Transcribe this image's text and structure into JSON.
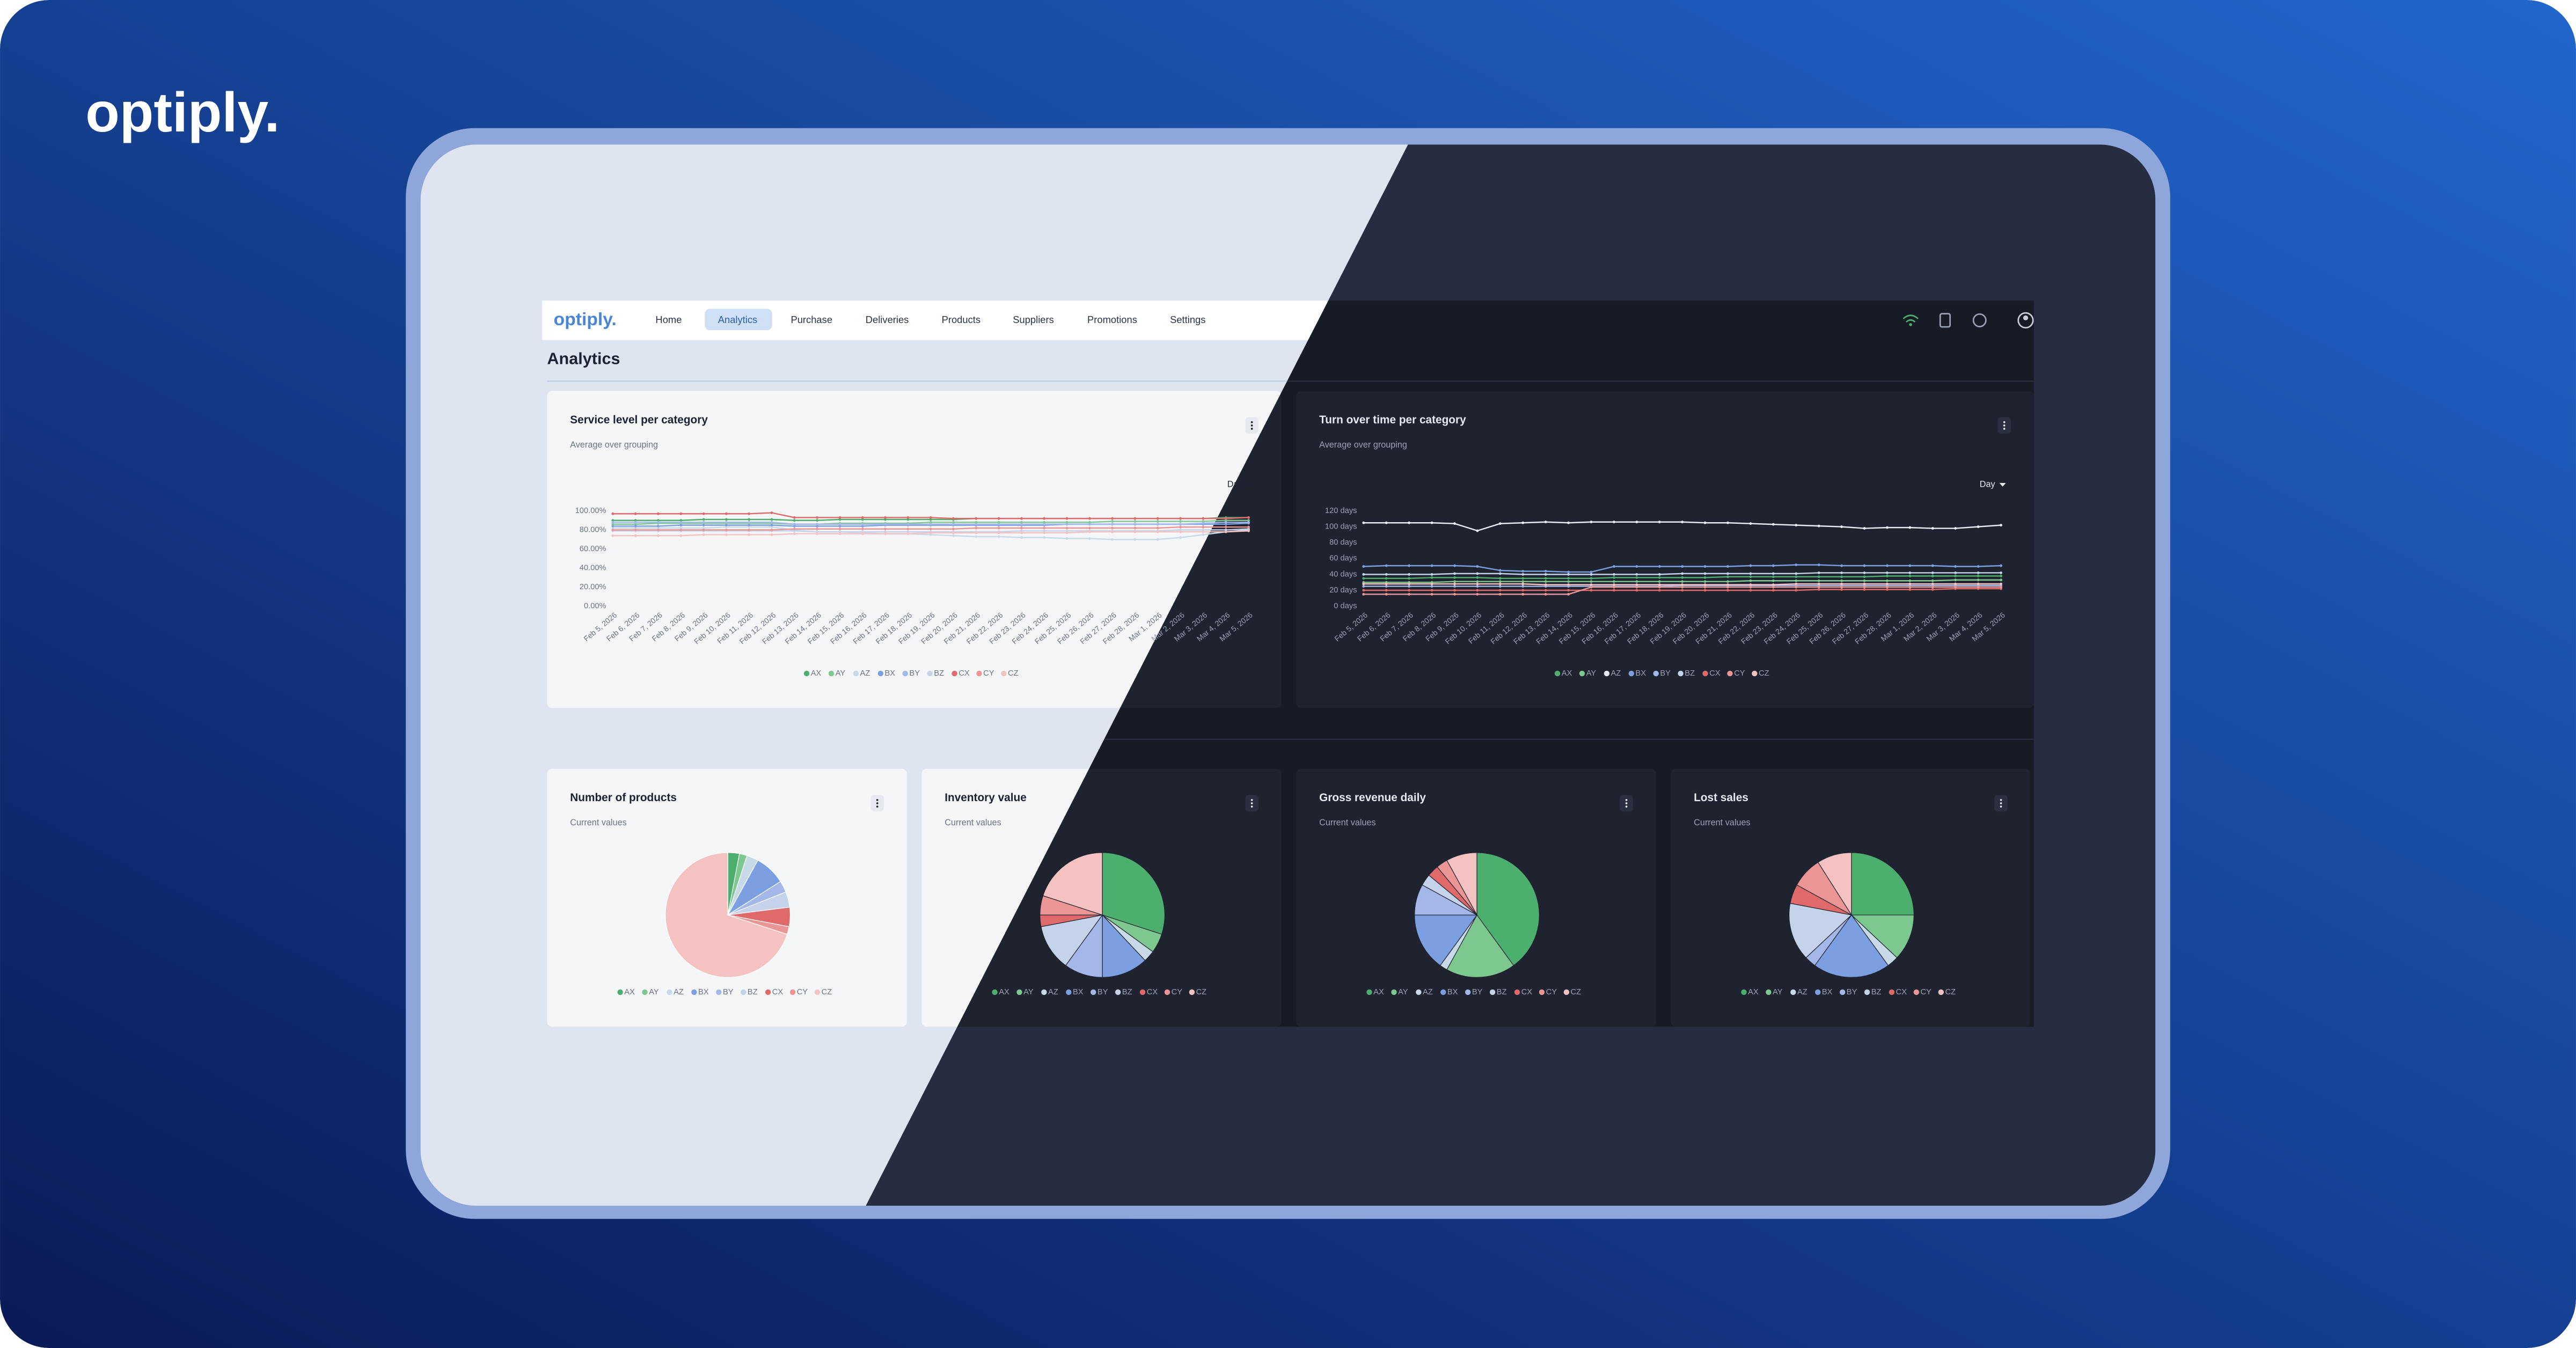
{
  "brand": "optiply.",
  "nav": {
    "logo": "optiply.",
    "items": [
      "Home",
      "Analytics",
      "Purchase",
      "Deliveries",
      "Products",
      "Suppliers",
      "Promotions",
      "Settings"
    ],
    "active": 1
  },
  "page_title": "Analytics",
  "chart_data": [
    {
      "type": "line",
      "title": "Service level per category",
      "subtitle": "Average over grouping",
      "dropdown": "Day",
      "categories": [
        "Feb 5, 2026",
        "Feb 6, 2026",
        "Feb 7, 2026",
        "Feb 8, 2026",
        "Feb 9, 2026",
        "Feb 10, 2026",
        "Feb 11, 2026",
        "Feb 12, 2026",
        "Feb 13, 2026",
        "Feb 14, 2026",
        "Feb 15, 2026",
        "Feb 16, 2026",
        "Feb 17, 2026",
        "Feb 18, 2026",
        "Feb 19, 2026",
        "Feb 20, 2026",
        "Feb 21, 2026",
        "Feb 22, 2026",
        "Feb 23, 2026",
        "Feb 24, 2026",
        "Feb 25, 2026",
        "Feb 26, 2026",
        "Feb 27, 2026",
        "Feb 28, 2026",
        "Mar 1, 2026",
        "Mar 2, 2026",
        "Mar 3, 2026",
        "Mar 4, 2026",
        "Mar 5, 2026"
      ],
      "ylim": [
        0,
        100
      ],
      "yticks": [
        {
          "value": 0,
          "label": "0.00%"
        },
        {
          "value": 20,
          "label": "20.00%"
        },
        {
          "value": 40,
          "label": "40.00%"
        },
        {
          "value": 60,
          "label": "60.00%"
        },
        {
          "value": 80,
          "label": "80.00%"
        },
        {
          "value": 100,
          "label": "100.00%"
        }
      ],
      "series": [
        {
          "name": "AX",
          "color": "#4caf6e",
          "values": [
            90,
            90,
            90,
            90,
            91,
            91,
            91,
            91,
            90,
            90,
            91,
            91,
            91,
            91,
            91,
            91,
            92,
            92,
            92,
            92,
            92,
            92,
            92,
            92,
            92,
            92,
            92,
            93,
            93
          ]
        },
        {
          "name": "AY",
          "color": "#7cc88f",
          "values": [
            86,
            86,
            87,
            87,
            87,
            87,
            87,
            87,
            86,
            86,
            87,
            87,
            87,
            87,
            88,
            88,
            88,
            88,
            88,
            88,
            88,
            88,
            89,
            89,
            89,
            89,
            89,
            90,
            90
          ]
        },
        {
          "name": "AZ",
          "color": "#c8d9e8",
          "values": [
            82,
            82,
            82,
            82,
            82,
            83,
            83,
            83,
            80,
            78,
            78,
            77,
            76,
            76,
            75,
            74,
            73,
            73,
            72,
            72,
            71,
            71,
            70,
            70,
            70,
            72,
            75,
            78,
            80
          ]
        },
        {
          "name": "BX",
          "color": "#7b9fe0",
          "values": [
            84,
            84,
            84,
            85,
            85,
            85,
            85,
            85,
            84,
            84,
            84,
            84,
            85,
            85,
            85,
            85,
            85,
            85,
            85,
            85,
            86,
            86,
            86,
            86,
            86,
            86,
            86,
            86,
            87
          ]
        },
        {
          "name": "BY",
          "color": "#a3b8e8",
          "values": [
            88,
            88,
            88,
            88,
            88,
            88,
            88,
            88,
            86,
            86,
            86,
            86,
            86,
            86,
            86,
            86,
            86,
            86,
            86,
            86,
            86,
            86,
            86,
            86,
            86,
            86,
            87,
            88,
            88
          ]
        },
        {
          "name": "BZ",
          "color": "#c5d3ea",
          "values": [
            79,
            79,
            79,
            79,
            79,
            79,
            79,
            79,
            79,
            78,
            78,
            78,
            78,
            78,
            78,
            78,
            78,
            78,
            79,
            79,
            79,
            79,
            79,
            79,
            79,
            80,
            80,
            80,
            81
          ]
        },
        {
          "name": "CX",
          "color": "#e06a6a",
          "values": [
            97,
            97,
            97,
            97,
            97,
            97,
            97,
            98,
            93,
            93,
            93,
            93,
            93,
            93,
            93,
            92,
            92,
            92,
            92,
            92,
            92,
            92,
            92,
            92,
            92,
            92,
            92,
            92,
            93
          ]
        },
        {
          "name": "CY",
          "color": "#eb9595",
          "values": [
            80,
            80,
            80,
            80,
            80,
            80,
            80,
            80,
            81,
            81,
            81,
            81,
            81,
            81,
            81,
            81,
            82,
            82,
            82,
            82,
            82,
            82,
            82,
            82,
            82,
            83,
            83,
            83,
            83
          ]
        },
        {
          "name": "CZ",
          "color": "#f5c2c2",
          "values": [
            74,
            74,
            74,
            74,
            75,
            75,
            75,
            75,
            76,
            76,
            76,
            76,
            76,
            76,
            77,
            77,
            77,
            77,
            77,
            77,
            77,
            78,
            78,
            78,
            78,
            78,
            78,
            78,
            79
          ]
        }
      ]
    },
    {
      "type": "line",
      "title": "Turn over time per category",
      "subtitle": "Average over grouping",
      "dropdown": "Day",
      "categories": [
        "Feb 5, 2026",
        "Feb 6, 2026",
        "Feb 7, 2026",
        "Feb 8, 2026",
        "Feb 9, 2026",
        "Feb 10, 2026",
        "Feb 11, 2026",
        "Feb 12, 2026",
        "Feb 13, 2026",
        "Feb 14, 2026",
        "Feb 15, 2026",
        "Feb 16, 2026",
        "Feb 17, 2026",
        "Feb 18, 2026",
        "Feb 19, 2026",
        "Feb 20, 2026",
        "Feb 21, 2026",
        "Feb 22, 2026",
        "Feb 23, 2026",
        "Feb 24, 2026",
        "Feb 25, 2026",
        "Feb 26, 2026",
        "Feb 27, 2026",
        "Feb 28, 2026",
        "Mar 1, 2026",
        "Mar 2, 2026",
        "Mar 3, 2026",
        "Mar 4, 2026",
        "Mar 5, 2026"
      ],
      "ylim": [
        0,
        120
      ],
      "yticks": [
        {
          "value": 0,
          "label": "0 days"
        },
        {
          "value": 20,
          "label": "20 days"
        },
        {
          "value": 40,
          "label": "40 days"
        },
        {
          "value": 60,
          "label": "60 days"
        },
        {
          "value": 80,
          "label": "80 days"
        },
        {
          "value": 100,
          "label": "100 days"
        },
        {
          "value": 120,
          "label": "120 days"
        }
      ],
      "series": [
        {
          "name": "AX",
          "color": "#4caf6e",
          "values": [
            35,
            35,
            35,
            36,
            36,
            36,
            35,
            35,
            35,
            35,
            35,
            36,
            36,
            36,
            36,
            36,
            37,
            37,
            37,
            37,
            37,
            37,
            37,
            38,
            38,
            38,
            38,
            38,
            38
          ]
        },
        {
          "name": "AY",
          "color": "#7cc88f",
          "values": [
            30,
            30,
            30,
            30,
            31,
            31,
            31,
            31,
            31,
            31,
            31,
            31,
            31,
            31,
            31,
            31,
            31,
            32,
            32,
            32,
            32,
            32,
            32,
            32,
            32,
            32,
            33,
            33,
            33
          ]
        },
        {
          "name": "AZ",
          "color": "#e8edf4",
          "values": [
            105,
            105,
            105,
            105,
            104,
            95,
            104,
            105,
            106,
            105,
            106,
            106,
            106,
            106,
            106,
            105,
            105,
            104,
            103,
            102,
            101,
            100,
            98,
            99,
            99,
            98,
            98,
            100,
            102
          ]
        },
        {
          "name": "BX",
          "color": "#7b9fe0",
          "values": [
            50,
            51,
            51,
            51,
            51,
            50,
            45,
            44,
            44,
            43,
            43,
            50,
            50,
            50,
            50,
            50,
            50,
            51,
            51,
            52,
            52,
            51,
            51,
            51,
            51,
            51,
            50,
            50,
            51
          ]
        },
        {
          "name": "BY",
          "color": "#a3b8e8",
          "values": [
            25,
            25,
            25,
            25,
            25,
            25,
            25,
            25,
            25,
            25,
            25,
            25,
            25,
            25,
            26,
            26,
            26,
            26,
            26,
            26,
            26,
            26,
            26,
            26,
            26,
            26,
            26,
            26,
            26
          ]
        },
        {
          "name": "BZ",
          "color": "#c5d3ea",
          "values": [
            40,
            40,
            40,
            40,
            41,
            41,
            41,
            40,
            40,
            40,
            40,
            40,
            40,
            40,
            41,
            41,
            41,
            41,
            41,
            41,
            42,
            42,
            42,
            42,
            42,
            42,
            42,
            42,
            42
          ]
        },
        {
          "name": "CX",
          "color": "#e06a6a",
          "values": [
            20,
            20,
            20,
            20,
            20,
            20,
            20,
            20,
            20,
            20,
            20,
            20,
            20,
            20,
            20,
            20,
            20,
            20,
            20,
            20,
            21,
            21,
            21,
            21,
            21,
            21,
            22,
            22,
            22
          ]
        },
        {
          "name": "CY",
          "color": "#eb9595",
          "values": [
            15,
            15,
            15,
            15,
            15,
            15,
            15,
            15,
            15,
            15,
            24,
            24,
            24,
            24,
            24,
            24,
            24,
            24,
            24,
            24,
            24,
            24,
            24,
            24,
            24,
            24,
            24,
            24,
            24
          ]
        },
        {
          "name": "CZ",
          "color": "#f5c2c2",
          "values": [
            28,
            28,
            28,
            28,
            28,
            28,
            28,
            28,
            27,
            27,
            27,
            27,
            27,
            27,
            27,
            27,
            27,
            27,
            27,
            28,
            28,
            28,
            28,
            28,
            28,
            28,
            28,
            28,
            28
          ]
        }
      ]
    },
    {
      "type": "pie",
      "title": "Number of products",
      "subtitle": "Current values",
      "categories": [
        "AX",
        "AY",
        "AZ",
        "BX",
        "BY",
        "BZ",
        "CX",
        "CY",
        "CZ"
      ],
      "values": [
        3,
        2,
        3,
        8,
        3,
        4,
        5,
        2,
        70
      ],
      "colors": [
        "#4caf6e",
        "#7cc88f",
        "#c8d9e8",
        "#7b9fe0",
        "#a3b8e8",
        "#c5d3ea",
        "#e06a6a",
        "#eb9595",
        "#f5c2c2"
      ]
    },
    {
      "type": "pie",
      "title": "Inventory value",
      "subtitle": "Current values",
      "categories": [
        "AX",
        "AY",
        "AZ",
        "BX",
        "BY",
        "BZ",
        "CX",
        "CY",
        "CZ"
      ],
      "values": [
        30,
        5,
        3,
        12,
        10,
        12,
        3,
        5,
        20
      ],
      "colors": [
        "#4caf6e",
        "#7cc88f",
        "#c8d9e8",
        "#7b9fe0",
        "#a3b8e8",
        "#c5d3ea",
        "#e06a6a",
        "#eb9595",
        "#f5c2c2"
      ]
    },
    {
      "type": "pie",
      "title": "Gross revenue daily",
      "subtitle": "Current values",
      "categories": [
        "AX",
        "AY",
        "AZ",
        "BX",
        "BY",
        "BZ",
        "CX",
        "CY",
        "CZ"
      ],
      "values": [
        40,
        18,
        2,
        15,
        8,
        3,
        3,
        3,
        8
      ],
      "colors": [
        "#4caf6e",
        "#7cc88f",
        "#c8d9e8",
        "#7b9fe0",
        "#a3b8e8",
        "#c5d3ea",
        "#e06a6a",
        "#eb9595",
        "#f5c2c2"
      ]
    },
    {
      "type": "pie",
      "title": "Lost sales",
      "subtitle": "Current values",
      "categories": [
        "AX",
        "AY",
        "AZ",
        "BX",
        "BY",
        "BZ",
        "CX",
        "CY",
        "CZ"
      ],
      "values": [
        25,
        12,
        3,
        20,
        3,
        15,
        5,
        8,
        9
      ],
      "colors": [
        "#4caf6e",
        "#7cc88f",
        "#c8d9e8",
        "#7b9fe0",
        "#a3b8e8",
        "#c5d3ea",
        "#e06a6a",
        "#eb9595",
        "#f5c2c2"
      ]
    }
  ]
}
